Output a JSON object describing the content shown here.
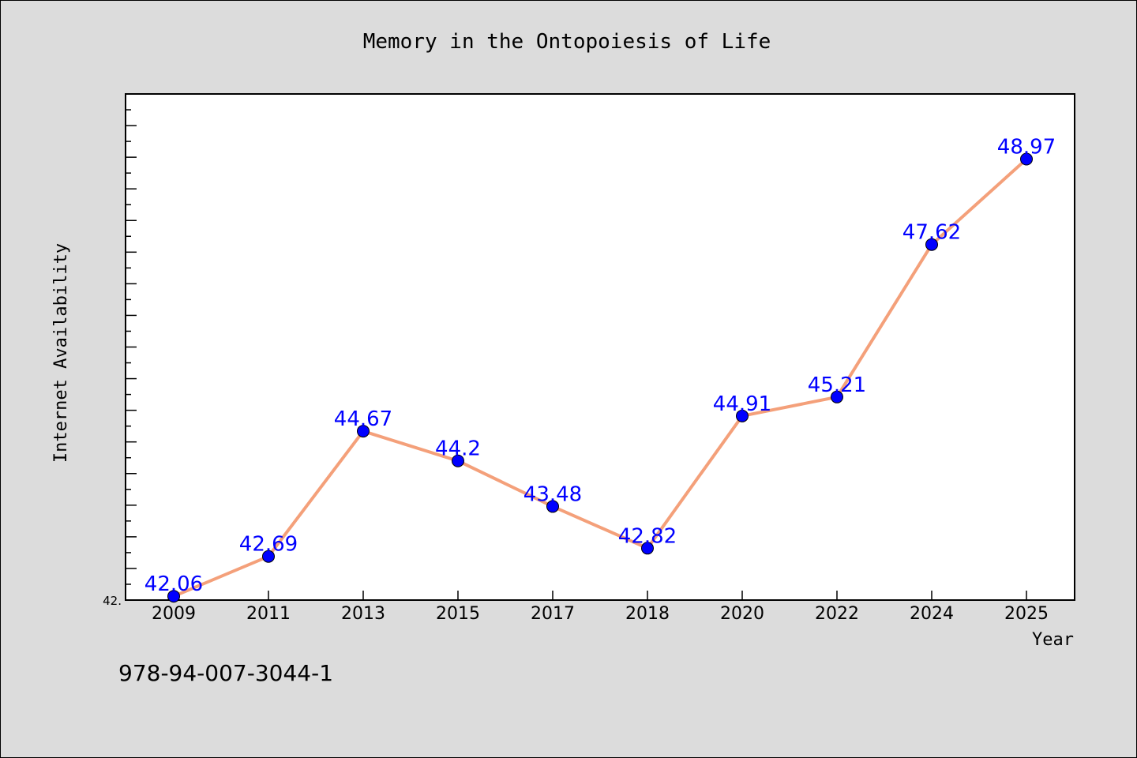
{
  "chart_data": {
    "type": "line",
    "title": "Memory in the Ontopoiesis of Life",
    "xlabel": "Year",
    "ylabel": "Internet Availability",
    "categories": [
      "2009",
      "2011",
      "2013",
      "2015",
      "2017",
      "2018",
      "2020",
      "2022",
      "2024",
      "2025"
    ],
    "series": [
      {
        "values": [
          42.06,
          42.69,
          44.67,
          44.2,
          43.48,
          42.82,
          44.91,
          45.21,
          47.62,
          48.97
        ],
        "data_labels": [
          "42.06",
          "42.69",
          "44.67",
          "44.2",
          "43.48",
          "42.82",
          "44.91",
          "45.21",
          "47.62",
          "48.97"
        ]
      }
    ],
    "ylim": [
      42.0,
      50.0
    ],
    "y_tick_labels": [
      "42."
    ],
    "grid": false,
    "colors": {
      "line": "#f4a07a",
      "marker": "#0000ff",
      "data_label": "#0000ff",
      "plot_background": "#ffffff",
      "figure_background": "#dcdcdc"
    }
  },
  "footer": {
    "isbn": "978-94-007-3044-1"
  }
}
